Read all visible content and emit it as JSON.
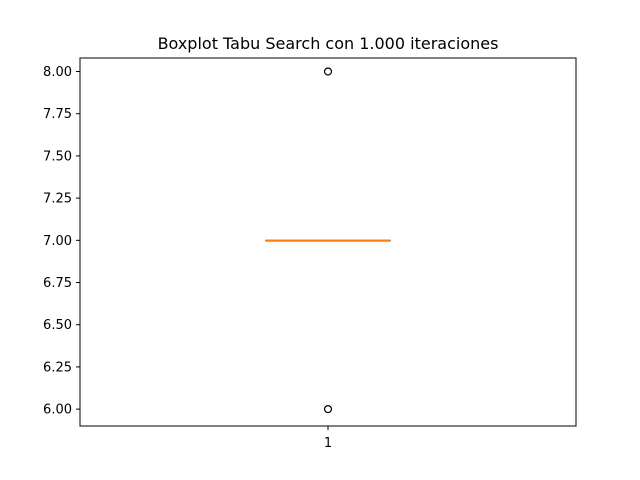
{
  "chart_data": {
    "type": "box",
    "title": "Boxplot Tabu Search con 1.000 iteraciones",
    "xlabel": "",
    "ylabel": "",
    "categories": [
      "1"
    ],
    "ylim": [
      5.9,
      8.08
    ],
    "yticks": [
      6.0,
      6.25,
      6.5,
      6.75,
      7.0,
      7.25,
      7.5,
      7.75,
      8.0
    ],
    "ytick_labels": [
      "6.00",
      "6.25",
      "6.50",
      "6.75",
      "7.00",
      "7.25",
      "7.50",
      "7.75",
      "8.00"
    ],
    "boxes": [
      {
        "category": "1",
        "q1": 7.0,
        "median": 7.0,
        "q3": 7.0,
        "whisker_low": 7.0,
        "whisker_high": 7.0,
        "outliers": [
          6.0,
          8.0
        ]
      }
    ],
    "grid": false,
    "colors": {
      "median": "#ff7f0e",
      "box": "#000000",
      "outlier": "#000000"
    }
  }
}
